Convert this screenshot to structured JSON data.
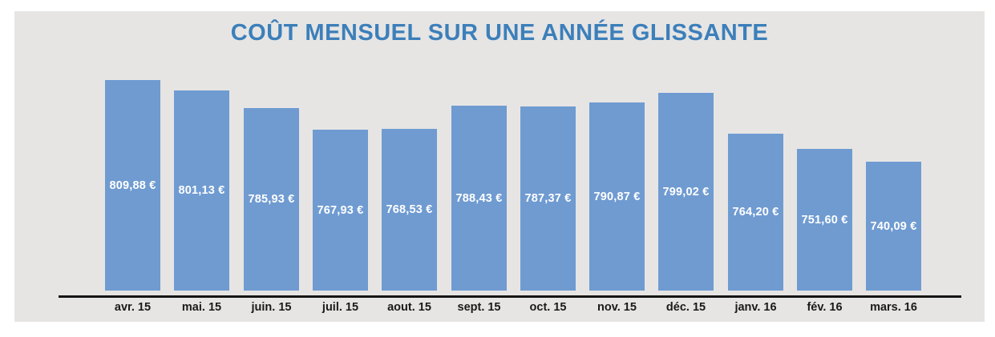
{
  "chart": {
    "title": "COÛT MENSUEL SUR UNE ANNÉE GLISSANTE"
  },
  "chart_data": {
    "type": "bar",
    "title": "COÛT MENSUEL SUR UNE ANNÉE GLISSANTE",
    "xlabel": "",
    "ylabel": "",
    "categories": [
      "avr. 15",
      "mai. 15",
      "juin. 15",
      "juil. 15",
      "aout. 15",
      "sept. 15",
      "oct. 15",
      "nov. 15",
      "déc. 15",
      "janv. 16",
      "fév. 16",
      "mars. 16"
    ],
    "values": [
      809.88,
      801.13,
      785.93,
      767.93,
      768.53,
      788.43,
      787.37,
      790.87,
      799.02,
      764.2,
      751.6,
      740.09
    ],
    "value_labels": [
      "809,88 €",
      "801,13 €",
      "785,93 €",
      "767,93 €",
      "768,53 €",
      "788,43 €",
      "787,37 €",
      "790,87 €",
      "799,02 €",
      "764,20 €",
      "751,60 €",
      "740,09 €"
    ],
    "ylim": [
      630,
      815
    ],
    "grid": false,
    "legend": null,
    "colors": {
      "bar": "#6f9bd1",
      "title": "#3c7fba",
      "value_label": "#ffffff",
      "axis_line": "#141414",
      "tick_label": "#1a1a1a",
      "panel_background": "#e6e5e4",
      "page_background": "#ffffff"
    }
  }
}
